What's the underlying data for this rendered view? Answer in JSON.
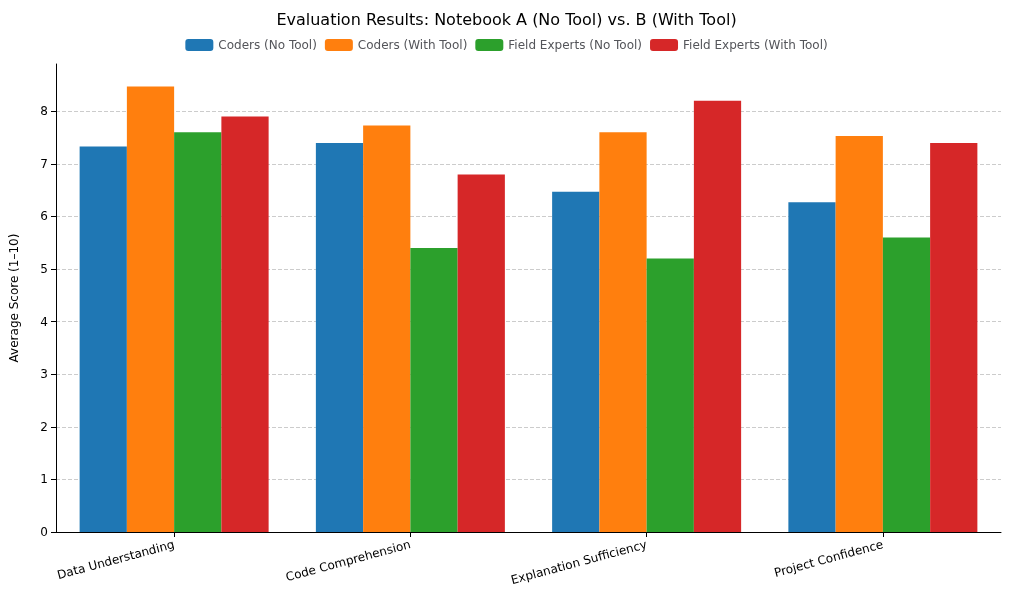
{
  "chart_data": {
    "type": "bar",
    "title": "Evaluation Results: Notebook A (No Tool) vs. B (With Tool)",
    "ylabel": "Average Score (1–10)",
    "categories": [
      "Data Understanding",
      "Code Comprehension",
      "Explanation Sufficiency",
      "Project Confidence"
    ],
    "series": [
      {
        "name": "Coders (No Tool)",
        "color": "#1f77b4",
        "values": [
          7.33,
          7.4,
          6.47,
          6.27
        ]
      },
      {
        "name": "Coders (With Tool)",
        "color": "#ff7f0e",
        "values": [
          8.47,
          7.73,
          7.6,
          7.53
        ]
      },
      {
        "name": "Field Experts (No Tool)",
        "color": "#2ca02c",
        "values": [
          7.6,
          5.4,
          5.2,
          5.6
        ]
      },
      {
        "name": "Field Experts (With Tool)",
        "color": "#d62728",
        "values": [
          7.9,
          6.8,
          8.2,
          7.4
        ]
      }
    ],
    "ylim": [
      0,
      8.9
    ],
    "yticks": [
      0,
      1,
      2,
      3,
      4,
      5,
      6,
      7,
      8
    ],
    "grid": "y",
    "legend": "top"
  }
}
